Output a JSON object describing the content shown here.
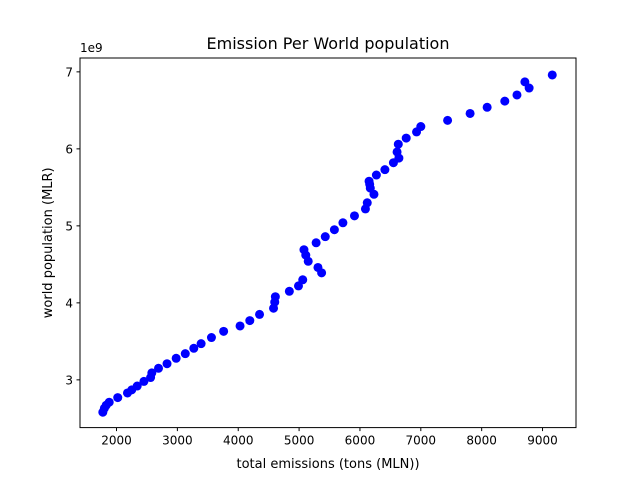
{
  "chart_data": {
    "type": "scatter",
    "title": "Emission Per World population",
    "xlabel": "total emissions (tons (MLN))",
    "ylabel": "world population (MLR)",
    "y_offset_label": "1e9",
    "xlim": [
      1400,
      9550
    ],
    "ylim": [
      2380000000,
      7180000000
    ],
    "x_ticks": [
      2000,
      3000,
      4000,
      5000,
      6000,
      7000,
      8000,
      9000
    ],
    "x_tick_labels": [
      "2000",
      "3000",
      "4000",
      "5000",
      "6000",
      "7000",
      "8000",
      "9000"
    ],
    "y_ticks": [
      3000000000,
      4000000000,
      5000000000,
      6000000000,
      7000000000
    ],
    "y_tick_labels": [
      "3",
      "4",
      "5",
      "6",
      "7"
    ],
    "grid": false,
    "marker_color": "#0000ff",
    "series": [
      {
        "x": [
          1775,
          1800,
          1830,
          1880,
          2020,
          2180,
          2250,
          2340,
          2450,
          2560,
          2580,
          2690,
          2830,
          2980,
          3130,
          3270,
          3390,
          3560,
          3760,
          4030,
          4190,
          4350,
          4580,
          4600,
          4610,
          4840,
          4990,
          5060,
          5080,
          5110,
          5150,
          5310,
          5370,
          5280,
          5430,
          5580,
          5720,
          5910,
          6090,
          6120,
          6170,
          6150,
          6160,
          6230,
          6270,
          6410,
          6550,
          6640,
          6610,
          6630,
          6760,
          6930,
          7000,
          7440,
          7810,
          8090,
          8380,
          8580,
          8710,
          8780,
          9160
        ],
        "y": [
          2580000000,
          2630000000,
          2670000000,
          2710000000,
          2770000000,
          2830000000,
          2870000000,
          2920000000,
          2980000000,
          3030000000,
          3090000000,
          3150000000,
          3210000000,
          3280000000,
          3340000000,
          3410000000,
          3470000000,
          3550000000,
          3630000000,
          3700000000,
          3770000000,
          3850000000,
          3930000000,
          4010000000,
          4080000000,
          4150000000,
          4220000000,
          4300000000,
          4690000000,
          4620000000,
          4540000000,
          4460000000,
          4390000000,
          4780000000,
          4860000000,
          4950000000,
          5040000000,
          5130000000,
          5220000000,
          5300000000,
          5490000000,
          5580000000,
          5540000000,
          5410000000,
          5660000000,
          5730000000,
          5820000000,
          5880000000,
          5960000000,
          6060000000,
          6140000000,
          6220000000,
          6290000000,
          6370000000,
          6460000000,
          6540000000,
          6620000000,
          6700000000,
          6870000000,
          6790000000,
          6960000000
        ]
      }
    ]
  }
}
